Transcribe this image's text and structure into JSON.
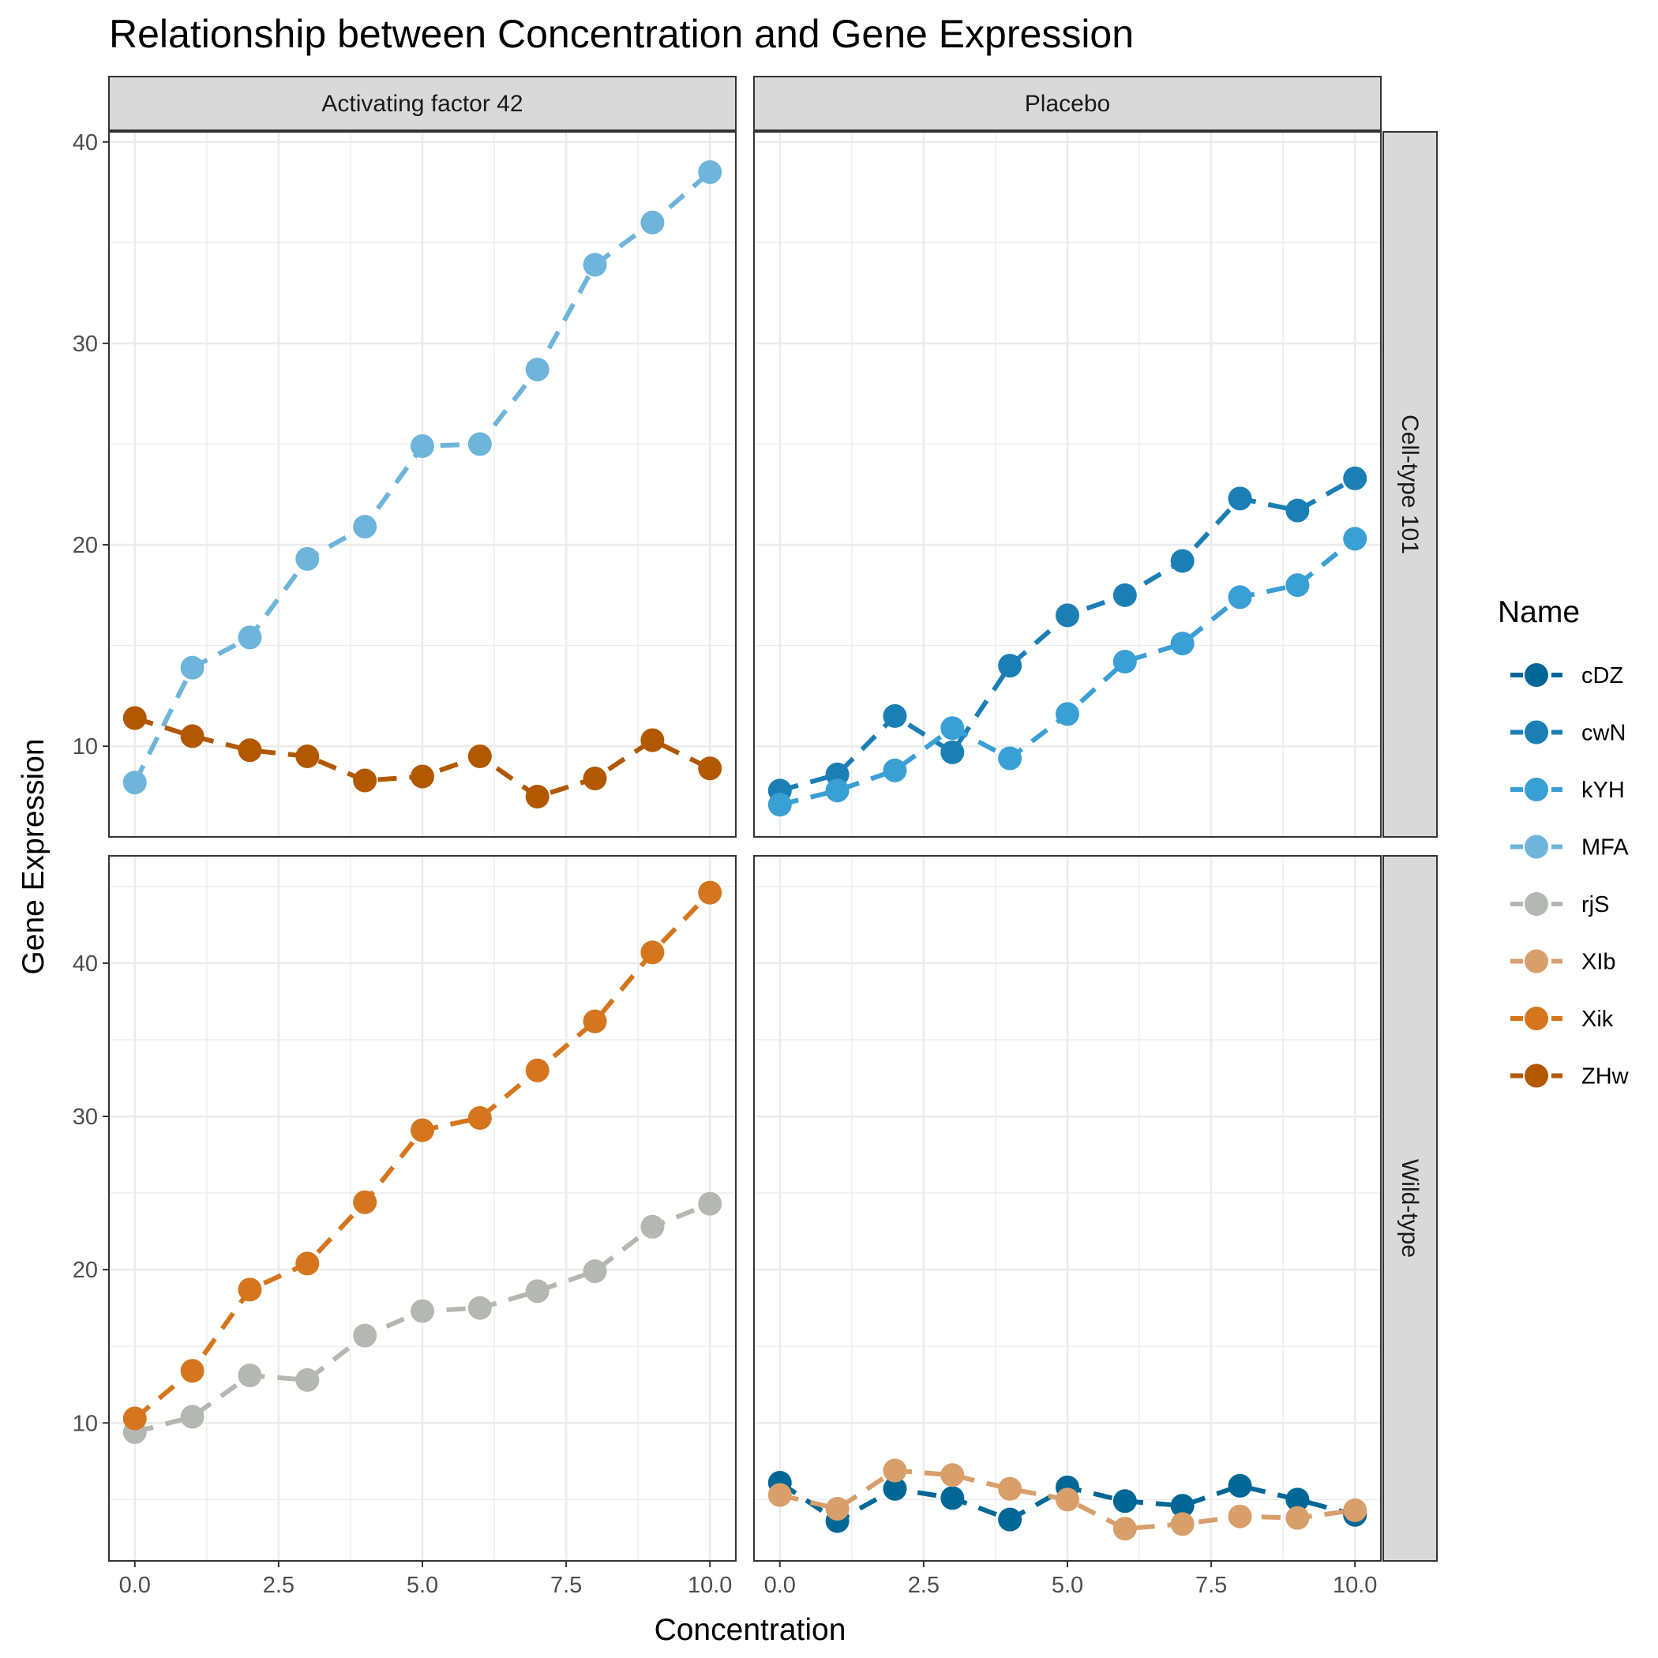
{
  "chart_data": {
    "type": "scatter",
    "title": "Relationship between Concentration and Gene Expression",
    "xlabel": "Concentration",
    "ylabel": "Gene Expression",
    "col_facets": [
      "Activating factor 42",
      "Placebo"
    ],
    "row_facets": [
      "Cell-type 101",
      "Wild-type"
    ],
    "xlim": [
      -0.45,
      10.45
    ],
    "x_ticks": [
      0,
      2.5,
      5,
      7.5,
      10
    ],
    "x_tick_labels": [
      "0.0",
      "2.5",
      "5.0",
      "7.5",
      "10.0"
    ],
    "rows": [
      {
        "ylim": [
          5.5,
          40.5
        ],
        "y_ticks": [
          10,
          20,
          30,
          40
        ],
        "y_tick_labels": [
          "10",
          "20",
          "30",
          "40"
        ]
      },
      {
        "ylim": [
          1.0,
          47.0
        ],
        "y_ticks": [
          10,
          20,
          30,
          40
        ],
        "y_tick_labels": [
          "10",
          "20",
          "30",
          "40"
        ]
      }
    ],
    "grid": true,
    "legend": {
      "title": "Name",
      "placement": "right"
    },
    "series": [
      {
        "name": "cDZ",
        "color": "#006796",
        "col": 1,
        "row": 1,
        "x": [
          0,
          1,
          2,
          3,
          4,
          5,
          6,
          7,
          8,
          9,
          10
        ],
        "y": [
          6.1,
          3.6,
          5.7,
          5.1,
          3.7,
          5.8,
          4.9,
          4.6,
          5.9,
          5.0,
          4.0
        ]
      },
      {
        "name": "cwN",
        "color": "#1b7fb5",
        "col": 1,
        "row": 0,
        "x": [
          0,
          1,
          2,
          3,
          4,
          5,
          6,
          7,
          8,
          9,
          10
        ],
        "y": [
          7.8,
          8.6,
          11.5,
          9.7,
          14.0,
          16.5,
          17.5,
          19.2,
          22.3,
          21.7,
          23.3
        ]
      },
      {
        "name": "kYH",
        "color": "#3a9fd4",
        "col": 1,
        "row": 0,
        "x": [
          0,
          1,
          2,
          3,
          4,
          5,
          6,
          7,
          8,
          9,
          10
        ],
        "y": [
          7.1,
          7.8,
          8.8,
          10.9,
          9.4,
          11.6,
          14.2,
          15.1,
          17.4,
          18.0,
          20.3
        ]
      },
      {
        "name": "MFA",
        "color": "#6fb4da",
        "col": 0,
        "row": 0,
        "x": [
          0,
          1,
          2,
          3,
          4,
          5,
          6,
          7,
          8,
          9,
          10
        ],
        "y": [
          8.2,
          13.9,
          15.4,
          19.3,
          20.9,
          24.9,
          25.0,
          28.7,
          33.9,
          36.0,
          38.5
        ]
      },
      {
        "name": "rjS",
        "color": "#b5b8b2",
        "col": 0,
        "row": 1,
        "x": [
          0,
          1,
          2,
          3,
          4,
          5,
          6,
          7,
          8,
          9,
          10
        ],
        "y": [
          9.4,
          10.4,
          13.1,
          12.8,
          15.7,
          17.3,
          17.5,
          18.6,
          19.9,
          22.8,
          24.3
        ]
      },
      {
        "name": "XIb",
        "color": "#d89f6b",
        "col": 1,
        "row": 1,
        "x": [
          0,
          1,
          2,
          3,
          4,
          5,
          6,
          7,
          8,
          9,
          10
        ],
        "y": [
          5.3,
          4.4,
          6.9,
          6.6,
          5.7,
          5.0,
          3.1,
          3.4,
          3.9,
          3.8,
          4.3
        ]
      },
      {
        "name": "Xik",
        "color": "#d5761f",
        "col": 0,
        "row": 1,
        "x": [
          0,
          1,
          2,
          3,
          4,
          5,
          6,
          7,
          8,
          9,
          10
        ],
        "y": [
          10.3,
          13.4,
          18.7,
          20.4,
          24.4,
          29.1,
          29.9,
          33.0,
          36.2,
          40.7,
          44.6
        ]
      },
      {
        "name": "ZHw",
        "color": "#b25800",
        "col": 0,
        "row": 0,
        "x": [
          0,
          1,
          2,
          3,
          4,
          5,
          6,
          7,
          8,
          9,
          10
        ],
        "y": [
          11.4,
          10.5,
          9.8,
          9.5,
          8.3,
          8.5,
          9.5,
          7.5,
          8.4,
          10.3,
          8.9
        ]
      }
    ]
  }
}
